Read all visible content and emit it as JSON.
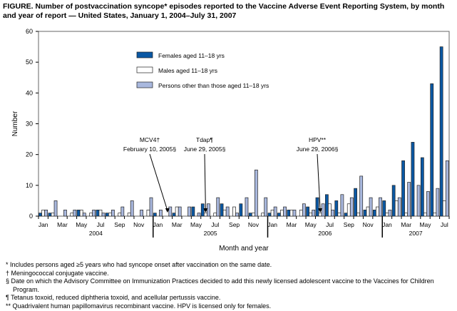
{
  "title": "FIGURE. Number of postvaccination syncope* episodes reported to the Vaccine Adverse Event Reporting System, by month and year of report — United States, January 1, 2004–July 31, 2007",
  "footnotes": [
    "* Includes persons aged ≥5 years who had syncope onset after vaccination on the same date.",
    "† Meningococcal conjugate vaccine.",
    "§ Date on which the Advisory Committee on Immunization Practices decided to add this newly licensed adolescent vaccine to the Vaccines for Children Program.",
    "¶ Tetanus toxoid, reduced diphtheria toxoid, and acellular pertussis vaccine.",
    "** Quadrivalent human papillomavirus recombinant vaccine. HPV is licensed only for females."
  ],
  "chart_data": {
    "type": "bar",
    "xlabel": "Month and year",
    "ylabel": "Number",
    "ylim": [
      0,
      60
    ],
    "yticks": [
      0,
      10,
      20,
      30,
      40,
      50,
      60
    ],
    "month_labels": [
      "Jan",
      "Mar",
      "May",
      "Jul",
      "Sep",
      "Nov"
    ],
    "years": [
      "2004",
      "2005",
      "2006",
      "2007"
    ],
    "legend_position": "top-center",
    "colors": {
      "females": "#0a58a4",
      "males": "#ffffff",
      "others": "#a9b8de"
    },
    "series": [
      {
        "name": "Females aged 11–18 yrs",
        "values": [
          1,
          1,
          0,
          0,
          2,
          0,
          2,
          1,
          0,
          0,
          0,
          0,
          1,
          0,
          1,
          0,
          3,
          4,
          0,
          4,
          0,
          4,
          1,
          0,
          1,
          1,
          2,
          0,
          3,
          6,
          7,
          5,
          1,
          9,
          2,
          2,
          5,
          10,
          18,
          24,
          19,
          43,
          55
        ]
      },
      {
        "name": "Males aged 11–18 yrs",
        "values": [
          2,
          1,
          0,
          1,
          2,
          1,
          2,
          1,
          1,
          1,
          0,
          2,
          0,
          0,
          3,
          0,
          0,
          1,
          1,
          2,
          3,
          0,
          1,
          1,
          2,
          2,
          2,
          2,
          1,
          1,
          4,
          1,
          4,
          1,
          3,
          3,
          1,
          5,
          1,
          0,
          1,
          1,
          5
        ]
      },
      {
        "name": "Persons other than those aged 11–18 yrs",
        "values": [
          2,
          5,
          2,
          2,
          1,
          2,
          1,
          2,
          3,
          5,
          2,
          6,
          2,
          3,
          3,
          3,
          1,
          4,
          6,
          3,
          1,
          6,
          15,
          6,
          3,
          3,
          2,
          4,
          2,
          4,
          2,
          7,
          6,
          13,
          6,
          6,
          2,
          6,
          11,
          10,
          8,
          9,
          18
        ]
      }
    ],
    "annotations": [
      {
        "label": "MCV4†",
        "date": "February 10, 2005§",
        "month_index": 13
      },
      {
        "label": "Tdap¶",
        "date": "June 29, 2005§",
        "month_index": 17
      },
      {
        "label": "HPV**",
        "date": "June 29, 2006§",
        "month_index": 29
      }
    ]
  }
}
